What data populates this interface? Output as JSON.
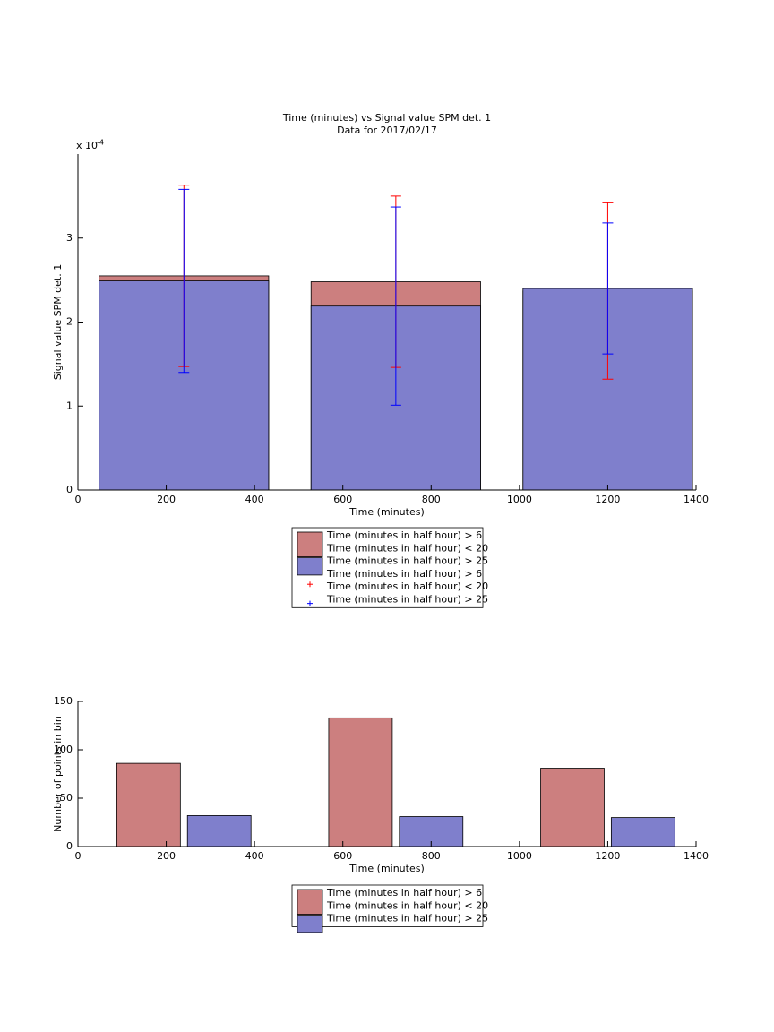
{
  "chart_data": [
    {
      "type": "bar",
      "title": "Time (minutes) vs Signal value SPM det. 1",
      "subtitle": "Data for 2017/02/17",
      "x_label": "Time (minutes)",
      "y_label": "Signal value SPM det. 1",
      "y_multiplier": "x 10",
      "y_multiplier_exponent": "-4",
      "x": [
        240,
        720,
        1200
      ],
      "series": [
        {
          "name": [
            "Time (minutes in half hour) > 6",
            "Time (minutes in half hour) < 20"
          ],
          "color": "#cc7f7f",
          "values": [
            2.55,
            2.48,
            2.37
          ]
        },
        {
          "name": [
            "Time (minutes in half hour) > 25"
          ],
          "color": "#7f7fcc",
          "values": [
            2.49,
            2.19,
            2.4
          ]
        }
      ],
      "error_series": [
        {
          "name": [
            "Time (minutes in half hour) > 6",
            "Time (minutes in half hour) < 20"
          ],
          "color": "#ff0000",
          "errors": [
            1.08,
            1.02,
            1.05
          ]
        },
        {
          "name": [
            "Time (minutes in half hour) > 25"
          ],
          "color": "#0000ff",
          "errors": [
            1.09,
            1.18,
            0.78
          ]
        }
      ],
      "xlim": [
        0,
        1400
      ],
      "xticks": [
        0,
        200,
        400,
        600,
        800,
        1000,
        1200,
        1400
      ],
      "ylim": [
        0,
        4
      ],
      "yticks": [
        0,
        1,
        2,
        3
      ]
    },
    {
      "type": "grouped_bar",
      "x_label": "Time (minutes)",
      "y_label": "Number of points in bin",
      "x": [
        240,
        720,
        1200
      ],
      "series": [
        {
          "name": [
            "Time (minutes in half hour) > 6",
            "Time (minutes in half hour) < 20"
          ],
          "color": "#cc7f7f",
          "values": [
            86,
            133,
            81
          ]
        },
        {
          "name": [
            "Time (minutes in half hour) > 25"
          ],
          "color": "#7f7fcc",
          "values": [
            32,
            31,
            30
          ]
        }
      ],
      "xlim": [
        0,
        1400
      ],
      "xticks": [
        0,
        200,
        400,
        600,
        800,
        1000,
        1200,
        1400
      ],
      "ylim": [
        0,
        150
      ],
      "yticks": [
        0,
        50,
        100,
        150
      ]
    }
  ]
}
